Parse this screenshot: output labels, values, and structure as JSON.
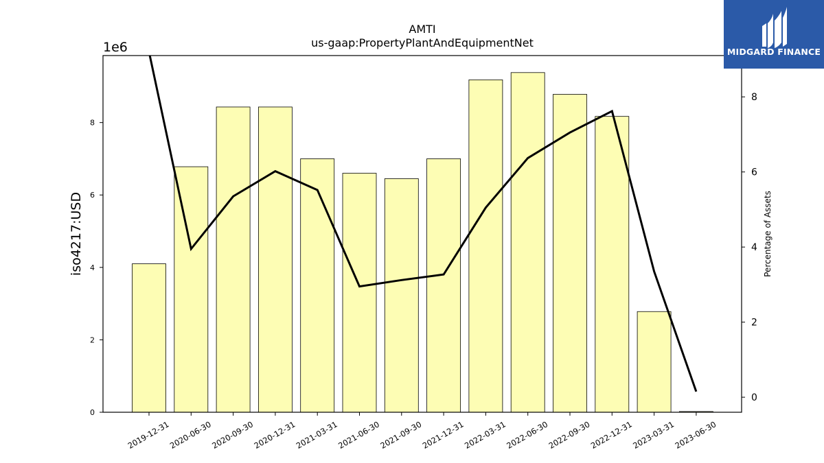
{
  "chart_data": {
    "type": "bar",
    "title": "AMTI",
    "subtitle": "us-gaap:PropertyPlantAndEquipmentNet",
    "ylabel": "iso4217:USD",
    "y_offset_label": "1e6",
    "y2label": "Percentage of Assets",
    "categories": [
      "2019-12-31",
      "2020-06-30",
      "2020-09-30",
      "2020-12-31",
      "2021-03-31",
      "2021-06-30",
      "2021-09-30",
      "2021-12-31",
      "2022-03-31",
      "2022-06-30",
      "2022-09-30",
      "2022-12-31",
      "2023-03-31",
      "2023-06-30"
    ],
    "values": [
      4100000,
      6780000,
      8430000,
      8430000,
      7000000,
      6600000,
      6450000,
      7000000,
      9180000,
      9380000,
      8780000,
      8170000,
      2780000,
      20000
    ],
    "line_values": [
      9.2,
      3.95,
      5.35,
      6.02,
      5.52,
      2.95,
      3.12,
      3.27,
      5.05,
      6.37,
      7.05,
      7.62,
      3.35,
      0.15
    ],
    "ylim": [
      0,
      9850000
    ],
    "y2lim": [
      -0.4,
      9.1
    ],
    "yticks": [
      0,
      2,
      4,
      6,
      8
    ],
    "y2ticks": [
      0,
      2,
      4,
      6,
      8
    ],
    "bar_color": "#fdfdb4",
    "line_color": "#000000"
  },
  "logo": {
    "text": "MIDGARD FINANCE"
  }
}
